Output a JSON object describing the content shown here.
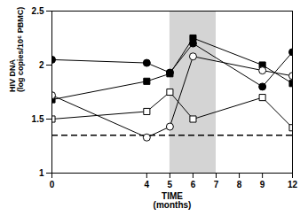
{
  "chart_data": {
    "type": "line",
    "x_label": "TIME\n(months)",
    "y_label": "HIV DNA\n(log copies/10⁶ PBMC)",
    "x": [
      0,
      4,
      5,
      6,
      9,
      12
    ],
    "xlim": [
      0,
      12
    ],
    "xticks": [
      0,
      4,
      5,
      6,
      7,
      8,
      9,
      12
    ],
    "ylim": [
      1,
      2.5
    ],
    "yticks": [
      1,
      1.5,
      2,
      2.5
    ],
    "shaded_region": [
      5,
      7
    ],
    "reference_line": 1.35,
    "series": [
      {
        "marker": "circle",
        "color": "#000000",
        "values": [
          2.05,
          2.02,
          1.93,
          2.2,
          1.8,
          2.12
        ]
      },
      {
        "marker": "square",
        "color": "#000000",
        "values": [
          1.68,
          1.85,
          1.92,
          2.25,
          2.0,
          1.83
        ]
      },
      {
        "marker": "open circle",
        "color": "#000000",
        "values": [
          1.72,
          1.33,
          1.43,
          2.08,
          1.95,
          1.9
        ]
      },
      {
        "marker": "open square",
        "color": "#000000",
        "values": [
          1.5,
          1.57,
          1.75,
          1.5,
          1.7,
          1.42
        ]
      }
    ]
  }
}
